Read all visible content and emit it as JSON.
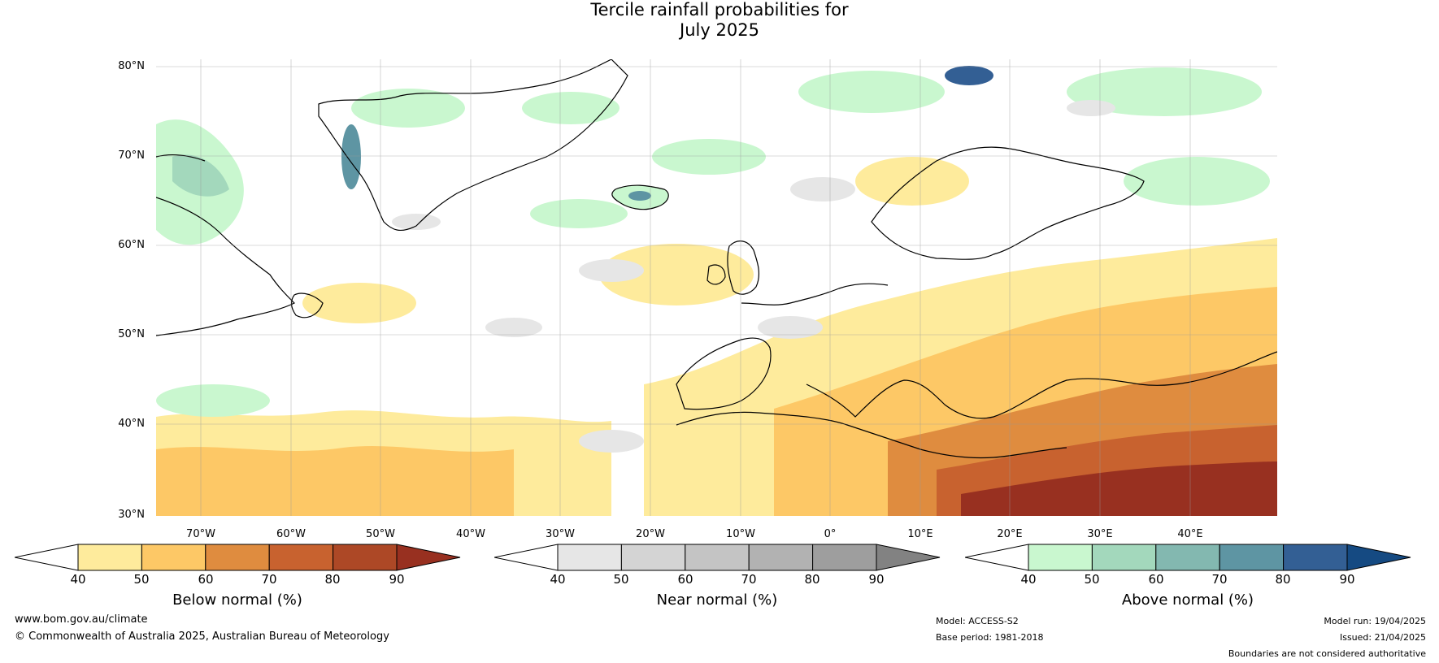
{
  "title": {
    "line1": "Tercile rainfall probabilities for",
    "line2": "July 2025"
  },
  "map": {
    "lat_labels": [
      "80°N",
      "70°N",
      "60°N",
      "50°N",
      "40°N",
      "30°N"
    ],
    "lon_labels": [
      "70°W",
      "60°W",
      "50°W",
      "40°W",
      "30°W",
      "20°W",
      "10°W",
      "0°",
      "10°E",
      "20°E",
      "30°E",
      "40°E"
    ]
  },
  "colorbars": [
    {
      "label": "Below normal (%)",
      "ticks": [
        "40",
        "50",
        "60",
        "70",
        "80",
        "90"
      ],
      "colors": [
        "#ffffff",
        "#feeb9c",
        "#fdc866",
        "#df8c3f",
        "#c8622f",
        "#ad4826",
        "#983020"
      ]
    },
    {
      "label": "Near normal (%)",
      "ticks": [
        "40",
        "50",
        "60",
        "70",
        "80",
        "90"
      ],
      "colors": [
        "#ffffff",
        "#e6e6e6",
        "#d4d4d4",
        "#c4c4c4",
        "#b2b2b2",
        "#9e9e9e",
        "#828282"
      ]
    },
    {
      "label": "Above normal (%)",
      "ticks": [
        "40",
        "50",
        "60",
        "70",
        "80",
        "90"
      ],
      "colors": [
        "#ffffff",
        "#c9f7cf",
        "#a3d8bc",
        "#83b8b0",
        "#5e95a3",
        "#335f94",
        "#154a82"
      ]
    }
  ],
  "footer": {
    "website": "www.bom.gov.au/climate",
    "copyright": "© Commonwealth of Australia 2025, Australian Bureau of Meteorology",
    "model": "Model: ACCESS-S2",
    "base_period": "Base period: 1981-2018",
    "model_run": "Model run: 19/04/2025",
    "issued": "Issued: 21/04/2025",
    "disclaimer": "Boundaries are not considered authoritative"
  }
}
